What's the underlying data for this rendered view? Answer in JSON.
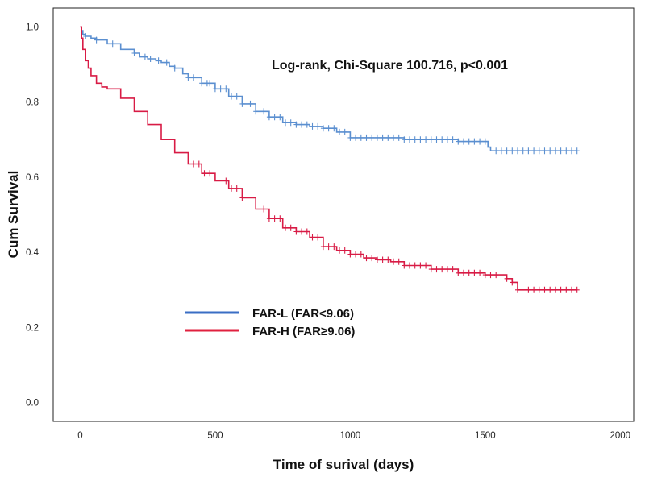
{
  "chart_data": {
    "type": "line",
    "subtype": "kaplan-meier",
    "title": "",
    "xlabel": "Time of surival (days)",
    "ylabel": "Cum Survival",
    "xlim": [
      -100,
      2050
    ],
    "ylim": [
      -0.05,
      1.05
    ],
    "x_ticks": [
      0,
      500,
      1000,
      1500,
      2000
    ],
    "y_ticks": [
      0.0,
      0.2,
      0.4,
      0.6,
      0.8,
      1.0
    ],
    "x_tick_labels": [
      "0",
      "500",
      "1000",
      "1500",
      "2000"
    ],
    "y_tick_labels": [
      "0.0",
      "0.2",
      "0.4",
      "0.6",
      "0.8",
      "1.0"
    ],
    "annotation": "Log-rank, Chi-Square 100.716, p<0.001",
    "legend": [
      {
        "label": "FAR-L (FAR<9.06)",
        "color": "#3a6ec4"
      },
      {
        "label": "FAR-H (FAR≥9.06)",
        "color": "#e0213f"
      }
    ],
    "series": [
      {
        "name": "FAR-L (FAR<9.06)",
        "color": "#5b8fd0",
        "x": [
          0,
          5,
          10,
          20,
          40,
          60,
          100,
          150,
          200,
          220,
          250,
          280,
          300,
          330,
          350,
          380,
          400,
          450,
          500,
          550,
          600,
          650,
          700,
          750,
          800,
          850,
          900,
          950,
          1000,
          1050,
          1100,
          1150,
          1200,
          1300,
          1400,
          1500,
          1510,
          1520,
          1600,
          1700,
          1840
        ],
        "y": [
          1.0,
          0.99,
          0.98,
          0.975,
          0.97,
          0.965,
          0.955,
          0.94,
          0.93,
          0.92,
          0.915,
          0.91,
          0.905,
          0.895,
          0.89,
          0.875,
          0.865,
          0.85,
          0.835,
          0.815,
          0.795,
          0.775,
          0.76,
          0.745,
          0.74,
          0.735,
          0.73,
          0.72,
          0.705,
          0.705,
          0.705,
          0.705,
          0.7,
          0.7,
          0.695,
          0.695,
          0.68,
          0.67,
          0.67,
          0.67,
          0.67
        ],
        "censor_x": [
          20,
          60,
          120,
          200,
          240,
          260,
          290,
          320,
          350,
          400,
          420,
          450,
          470,
          480,
          500,
          520,
          540,
          560,
          580,
          600,
          630,
          650,
          680,
          700,
          720,
          740,
          760,
          780,
          800,
          820,
          840,
          860,
          880,
          900,
          920,
          940,
          960,
          980,
          1000,
          1020,
          1040,
          1060,
          1080,
          1100,
          1120,
          1140,
          1160,
          1180,
          1200,
          1220,
          1240,
          1260,
          1280,
          1300,
          1320,
          1340,
          1360,
          1380,
          1400,
          1420,
          1440,
          1460,
          1480,
          1500,
          1540,
          1560,
          1580,
          1600,
          1620,
          1640,
          1660,
          1680,
          1700,
          1720,
          1740,
          1760,
          1780,
          1800,
          1820,
          1840
        ]
      },
      {
        "name": "FAR-H (FAR≥9.06)",
        "color": "#d81b45",
        "x": [
          0,
          5,
          10,
          20,
          30,
          40,
          60,
          80,
          100,
          150,
          200,
          250,
          300,
          350,
          400,
          450,
          500,
          550,
          600,
          650,
          700,
          750,
          800,
          850,
          900,
          950,
          1000,
          1050,
          1100,
          1150,
          1200,
          1300,
          1400,
          1500,
          1560,
          1580,
          1600,
          1620,
          1700,
          1840
        ],
        "y": [
          1.0,
          0.97,
          0.94,
          0.91,
          0.89,
          0.87,
          0.85,
          0.84,
          0.835,
          0.81,
          0.775,
          0.74,
          0.7,
          0.665,
          0.635,
          0.61,
          0.59,
          0.57,
          0.545,
          0.515,
          0.49,
          0.465,
          0.455,
          0.44,
          0.415,
          0.405,
          0.395,
          0.385,
          0.38,
          0.375,
          0.365,
          0.355,
          0.345,
          0.34,
          0.34,
          0.33,
          0.32,
          0.3,
          0.3,
          0.3
        ],
        "censor_x": [
          420,
          440,
          460,
          480,
          540,
          560,
          580,
          600,
          680,
          700,
          720,
          740,
          760,
          780,
          800,
          820,
          840,
          860,
          880,
          900,
          920,
          940,
          960,
          980,
          1000,
          1020,
          1040,
          1060,
          1080,
          1100,
          1120,
          1140,
          1160,
          1180,
          1200,
          1220,
          1240,
          1260,
          1280,
          1300,
          1320,
          1340,
          1360,
          1380,
          1400,
          1420,
          1440,
          1460,
          1480,
          1500,
          1520,
          1540,
          1580,
          1600,
          1620,
          1660,
          1680,
          1700,
          1720,
          1740,
          1760,
          1780,
          1800,
          1820,
          1840
        ]
      }
    ]
  }
}
